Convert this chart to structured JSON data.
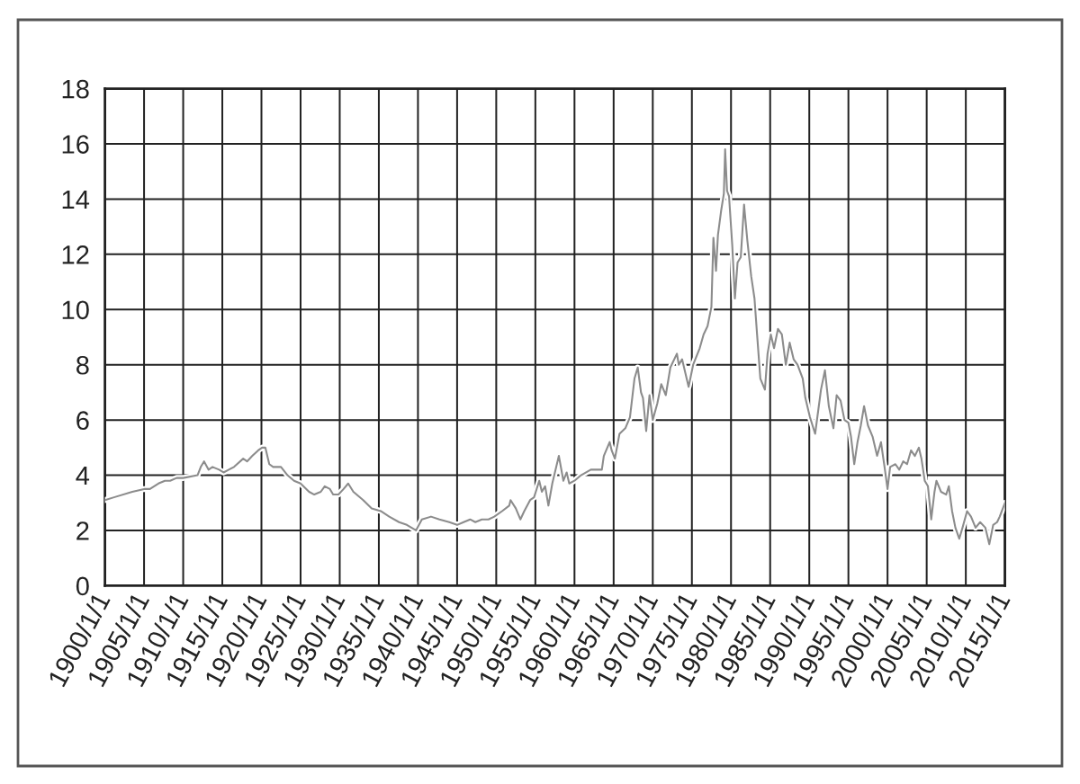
{
  "chart_data": {
    "type": "line",
    "x": [
      "1900-01",
      "1901-03",
      "1903-07",
      "1905-01",
      "1905-10",
      "1906-11",
      "1907-09",
      "1908-05",
      "1909-03",
      "1910-01",
      "1911-11",
      "1912-04",
      "1912-09",
      "1913-04",
      "1913-10",
      "1914-08",
      "1915-03",
      "1915-11",
      "1916-07",
      "1917-09",
      "1918-03",
      "1918-11",
      "1919-08",
      "1920-02",
      "1920-07",
      "1921-01",
      "1921-07",
      "1922-07",
      "1923-05",
      "1924-03",
      "1925-01",
      "1926-02",
      "1926-10",
      "1927-08",
      "1928-02",
      "1928-10",
      "1929-03",
      "1929-11",
      "1930-07",
      "1931-02",
      "1931-10",
      "1933-01",
      "1934-02",
      "1935-04",
      "1936-05",
      "1937-08",
      "1938-08",
      "1939-10",
      "1940-07",
      "1941-09",
      "1942-10",
      "1944-01",
      "1945-01",
      "1945-11",
      "1946-09",
      "1947-05",
      "1948-03",
      "1949-01",
      "1949-10",
      "1950-10",
      "1951-09",
      "1951-11",
      "1952-07",
      "1953-02",
      "1953-08",
      "1954-05",
      "1954-11",
      "1955-07",
      "1955-11",
      "1956-04",
      "1956-09",
      "1957-03",
      "1957-09",
      "1958-01",
      "1958-08",
      "1959-01",
      "1959-05",
      "1960-01",
      "1960-11",
      "1962-02",
      "1963-07",
      "1963-10",
      "1964-07",
      "1964-10",
      "1965-03",
      "1965-10",
      "1966-07",
      "1967-02",
      "1967-09",
      "1968-02",
      "1968-07",
      "1968-10",
      "1969-03",
      "1969-08",
      "1970-01",
      "1970-08",
      "1971-02",
      "1971-09",
      "1972-04",
      "1973-02",
      "1973-05",
      "1973-10",
      "1974-08",
      "1975-03",
      "1976-01",
      "1976-07",
      "1977-01",
      "1977-07",
      "1977-10",
      "1978-02",
      "1978-05",
      "1978-10",
      "1979-02",
      "1979-04",
      "1979-07",
      "1979-10",
      "1980-03",
      "1980-07",
      "1980-11",
      "1981-04",
      "1981-09",
      "1982-02",
      "1982-08",
      "1983-01",
      "1983-05",
      "1983-10",
      "1984-05",
      "1984-09",
      "1985-02",
      "1985-07",
      "1986-01",
      "1986-07",
      "1987-01",
      "1987-07",
      "1988-01",
      "1988-07",
      "1989-03",
      "1989-07",
      "1990-02",
      "1990-10",
      "1991-07",
      "1992-01",
      "1992-07",
      "1993-02",
      "1993-07",
      "1994-01",
      "1994-07",
      "1995-01",
      "1995-05",
      "1995-10",
      "1996-03",
      "1996-08",
      "1997-01",
      "1997-07",
      "1998-02",
      "1998-09",
      "1999-03",
      "1999-09",
      "2000-01",
      "2000-05",
      "2001-01",
      "2001-07",
      "2002-01",
      "2002-07",
      "2003-01",
      "2003-07",
      "2004-01",
      "2004-05",
      "2004-10",
      "2005-03",
      "2005-08",
      "2006-01",
      "2006-04",
      "2006-11",
      "2007-07",
      "2007-11",
      "2008-04",
      "2008-09",
      "2009-03",
      "2009-08",
      "2010-03",
      "2010-09",
      "2011-04",
      "2011-11",
      "2012-07",
      "2013-01",
      "2013-07",
      "2014-01",
      "2014-05",
      "2015-01"
    ],
    "series": [
      {
        "color": "#8c8c8c",
        "values": [
          3.1,
          3.2,
          3.4,
          3.5,
          3.5,
          3.7,
          3.8,
          3.8,
          3.9,
          3.9,
          4.0,
          4.3,
          4.5,
          4.2,
          4.3,
          4.2,
          4.1,
          4.2,
          4.3,
          4.6,
          4.5,
          4.7,
          4.9,
          5.0,
          5.0,
          4.4,
          4.3,
          4.3,
          4.0,
          3.8,
          3.7,
          3.4,
          3.3,
          3.4,
          3.6,
          3.5,
          3.3,
          3.3,
          3.5,
          3.7,
          3.4,
          3.1,
          2.8,
          2.7,
          2.5,
          2.3,
          2.2,
          2.0,
          2.4,
          2.5,
          2.4,
          2.3,
          2.2,
          2.3,
          2.4,
          2.3,
          2.4,
          2.4,
          2.5,
          2.7,
          2.9,
          3.1,
          2.8,
          2.4,
          2.7,
          3.1,
          3.2,
          3.8,
          3.4,
          3.6,
          2.9,
          3.7,
          4.3,
          4.7,
          3.8,
          4.1,
          3.7,
          3.8,
          4.0,
          4.2,
          4.2,
          4.7,
          5.2,
          4.9,
          4.6,
          5.5,
          5.7,
          6.1,
          7.5,
          7.9,
          7.0,
          6.8,
          5.6,
          6.9,
          6.0,
          6.6,
          7.3,
          6.9,
          7.9,
          8.4,
          8.0,
          8.2,
          7.2,
          8.0,
          8.6,
          9.1,
          9.4,
          10.1,
          12.6,
          11.4,
          12.7,
          13.6,
          14.2,
          15.8,
          14.3,
          14.1,
          12.3,
          10.4,
          11.7,
          11.9,
          13.8,
          12.5,
          11.2,
          10.4,
          9.1,
          7.5,
          7.1,
          8.4,
          9.1,
          8.6,
          9.3,
          9.1,
          8.0,
          8.8,
          8.2,
          8.0,
          7.5,
          6.8,
          6.1,
          5.5,
          7.1,
          7.8,
          6.5,
          5.7,
          6.9,
          6.7,
          6.0,
          5.9,
          5.4,
          4.4,
          5.2,
          5.8,
          6.5,
          5.8,
          5.4,
          4.7,
          5.2,
          4.2,
          3.5,
          4.3,
          4.4,
          4.2,
          4.5,
          4.4,
          4.9,
          4.7,
          5.0,
          4.6,
          3.8,
          3.6,
          2.4,
          3.4,
          3.8,
          3.4,
          3.3,
          3.6,
          2.7,
          2.1,
          1.7,
          2.1,
          2.7,
          2.5,
          2.1,
          2.3,
          2.1,
          1.5,
          2.2,
          2.3,
          2.5,
          3.0
        ]
      }
    ],
    "xlim": [
      "1900-01-01",
      "2015-01-01"
    ],
    "xticks": [
      {
        "value": "1900-01-01",
        "label": "1900/1/1"
      },
      {
        "value": "1905-01-01",
        "label": "1905/1/1"
      },
      {
        "value": "1910-01-01",
        "label": "1910/1/1"
      },
      {
        "value": "1915-01-01",
        "label": "1915/1/1"
      },
      {
        "value": "1920-01-01",
        "label": "1920/1/1"
      },
      {
        "value": "1925-01-01",
        "label": "1925/1/1"
      },
      {
        "value": "1930-01-01",
        "label": "1930/1/1"
      },
      {
        "value": "1935-01-01",
        "label": "1935/1/1"
      },
      {
        "value": "1940-01-01",
        "label": "1940/1/1"
      },
      {
        "value": "1945-01-01",
        "label": "1945/1/1"
      },
      {
        "value": "1950-01-01",
        "label": "1950/1/1"
      },
      {
        "value": "1955-01-01",
        "label": "1955/1/1"
      },
      {
        "value": "1960-01-01",
        "label": "1960/1/1"
      },
      {
        "value": "1965-01-01",
        "label": "1965/1/1"
      },
      {
        "value": "1970-01-01",
        "label": "1970/1/1"
      },
      {
        "value": "1975-01-01",
        "label": "1975/1/1"
      },
      {
        "value": "1980-01-01",
        "label": "1980/1/1"
      },
      {
        "value": "1985-01-01",
        "label": "1985/1/1"
      },
      {
        "value": "1990-01-01",
        "label": "1990/1/1"
      },
      {
        "value": "1995-01-01",
        "label": "1995/1/1"
      },
      {
        "value": "2000-01-01",
        "label": "2000/1/1"
      },
      {
        "value": "2005-01-01",
        "label": "2005/1/1"
      },
      {
        "value": "2010-01-01",
        "label": "2010/1/1"
      },
      {
        "value": "2015-01-01",
        "label": "2015/1/1"
      }
    ],
    "ylim": [
      0,
      18
    ],
    "yticks": [
      0,
      2,
      4,
      6,
      8,
      10,
      12,
      14,
      16,
      18
    ],
    "grid": true,
    "marker": "none",
    "line_style": "solid"
  }
}
